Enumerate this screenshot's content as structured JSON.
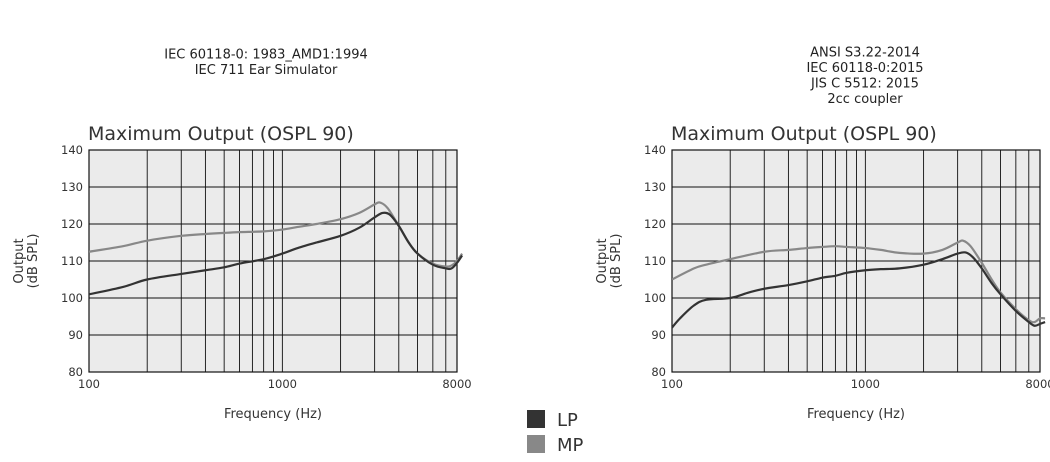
{
  "legend": {
    "items": [
      {
        "label": "LP",
        "color": "#333333"
      },
      {
        "label": "MP",
        "color": "#888888"
      }
    ]
  },
  "chart_data": [
    {
      "type": "line",
      "standard_lines": [
        "IEC 60118-0: 1983_AMD1:1994",
        "IEC 711 Ear Simulator"
      ],
      "title": "Maximum Output (OSPL 90)",
      "xlabel": "Frequency (Hz)",
      "ylabel": [
        "Output",
        "(dB SPL)"
      ],
      "xscale": "log",
      "xlim": [
        100,
        8000
      ],
      "ylim": [
        80,
        140
      ],
      "xticks": [
        {
          "value": 100,
          "label": "100"
        },
        {
          "value": 1000,
          "label": "1000"
        },
        {
          "value": 8000,
          "label": "8000"
        }
      ],
      "yticks": [
        80,
        90,
        100,
        110,
        120,
        130,
        140
      ],
      "grid": true,
      "series": [
        {
          "name": "LP",
          "color": "#333333",
          "points": [
            [
              100,
              101
            ],
            [
              150,
              103
            ],
            [
              200,
              105
            ],
            [
              300,
              106.5
            ],
            [
              400,
              107.5
            ],
            [
              500,
              108.3
            ],
            [
              600,
              109.3
            ],
            [
              800,
              110.5
            ],
            [
              1000,
              112
            ],
            [
              1200,
              113.5
            ],
            [
              1500,
              115
            ],
            [
              2000,
              116.8
            ],
            [
              2500,
              119
            ],
            [
              3000,
              121.8
            ],
            [
              3300,
              123
            ],
            [
              3600,
              122.5
            ],
            [
              4000,
              119.5
            ],
            [
              4500,
              115
            ],
            [
              5000,
              112
            ],
            [
              6000,
              109
            ],
            [
              7000,
              108
            ],
            [
              7500,
              108
            ],
            [
              8000,
              109.5
            ],
            [
              8500,
              111.5
            ]
          ]
        },
        {
          "name": "MP",
          "color": "#888888",
          "points": [
            [
              100,
              112.5
            ],
            [
              150,
              114
            ],
            [
              200,
              115.5
            ],
            [
              300,
              116.8
            ],
            [
              400,
              117.3
            ],
            [
              500,
              117.6
            ],
            [
              600,
              117.8
            ],
            [
              800,
              118
            ],
            [
              1000,
              118.5
            ],
            [
              1200,
              119.2
            ],
            [
              1500,
              120
            ],
            [
              2000,
              121.3
            ],
            [
              2500,
              123
            ],
            [
              3000,
              125.3
            ],
            [
              3200,
              125.8
            ],
            [
              3500,
              124.3
            ],
            [
              4000,
              119.5
            ],
            [
              4500,
              115
            ],
            [
              5000,
              112
            ],
            [
              6000,
              109.3
            ],
            [
              7000,
              108.5
            ],
            [
              7500,
              108.8
            ],
            [
              8000,
              110
            ],
            [
              8500,
              112
            ]
          ]
        }
      ]
    },
    {
      "type": "line",
      "standard_lines": [
        "ANSI S3.22-2014",
        "IEC 60118-0:2015",
        "JIS C 5512: 2015",
        "2cc coupler"
      ],
      "title": "Maximum Output (OSPL 90)",
      "xlabel": "Frequency (Hz)",
      "ylabel": [
        "Output",
        "(dB SPL)"
      ],
      "xscale": "log",
      "xlim": [
        100,
        8000
      ],
      "ylim": [
        80,
        140
      ],
      "xticks": [
        {
          "value": 100,
          "label": "100"
        },
        {
          "value": 1000,
          "label": "1000"
        },
        {
          "value": 8000,
          "label": "8000"
        }
      ],
      "yticks": [
        80,
        90,
        100,
        110,
        120,
        130,
        140
      ],
      "grid": true,
      "series": [
        {
          "name": "LP",
          "color": "#333333",
          "points": [
            [
              100,
              92
            ],
            [
              110,
              94.5
            ],
            [
              130,
              98
            ],
            [
              150,
              99.5
            ],
            [
              200,
              100
            ],
            [
              250,
              101.5
            ],
            [
              300,
              102.5
            ],
            [
              400,
              103.5
            ],
            [
              500,
              104.5
            ],
            [
              600,
              105.5
            ],
            [
              700,
              106
            ],
            [
              800,
              106.8
            ],
            [
              1000,
              107.5
            ],
            [
              1200,
              107.8
            ],
            [
              1500,
              108
            ],
            [
              2000,
              109
            ],
            [
              2500,
              110.5
            ],
            [
              3000,
              112
            ],
            [
              3300,
              112.3
            ],
            [
              3600,
              111
            ],
            [
              4000,
              108
            ],
            [
              4500,
              104
            ],
            [
              5000,
              101
            ],
            [
              6000,
              96.5
            ],
            [
              7000,
              93.5
            ],
            [
              7500,
              92.5
            ],
            [
              8000,
              93
            ],
            [
              8500,
              93.5
            ]
          ]
        },
        {
          "name": "MP",
          "color": "#888888",
          "points": [
            [
              100,
              105
            ],
            [
              130,
              108
            ],
            [
              150,
              109
            ],
            [
              200,
              110.5
            ],
            [
              300,
              112.5
            ],
            [
              400,
              113
            ],
            [
              500,
              113.5
            ],
            [
              600,
              113.8
            ],
            [
              700,
              114
            ],
            [
              800,
              113.8
            ],
            [
              1000,
              113.5
            ],
            [
              1200,
              113
            ],
            [
              1500,
              112.2
            ],
            [
              2000,
              112
            ],
            [
              2500,
              113
            ],
            [
              3000,
              115
            ],
            [
              3200,
              115.5
            ],
            [
              3500,
              114
            ],
            [
              4000,
              109.5
            ],
            [
              4500,
              105
            ],
            [
              5000,
              101.5
            ],
            [
              6000,
              97
            ],
            [
              7000,
              94
            ],
            [
              7500,
              93.5
            ],
            [
              8000,
              94.5
            ],
            [
              8500,
              94.5
            ]
          ]
        }
      ]
    }
  ]
}
